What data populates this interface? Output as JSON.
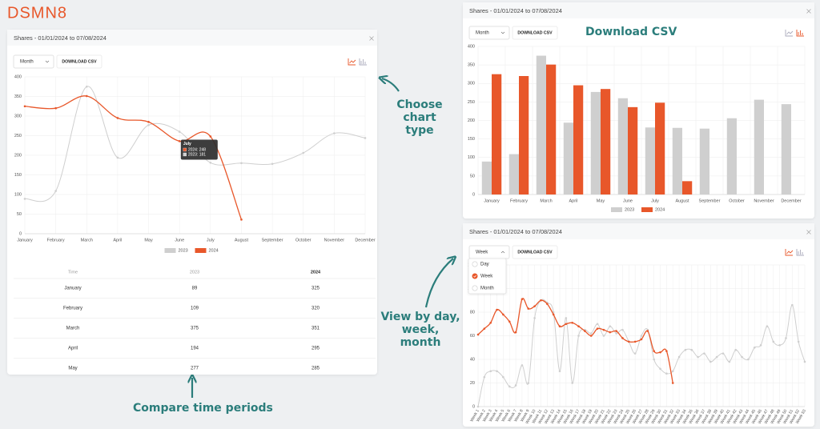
{
  "brand": "DSMN8",
  "annotations": [
    "Choose chart type",
    "Download CSV",
    "View by day, week, month",
    "Compare time periods"
  ],
  "chart_data": [
    {
      "type": "line",
      "title": "Shares - 01/01/2024 to 07/08/2024",
      "period": "Month",
      "button": "DOWNLOAD CSV",
      "categories": [
        "January",
        "February",
        "March",
        "April",
        "May",
        "June",
        "July",
        "August",
        "September",
        "October",
        "November",
        "December"
      ],
      "series": [
        {
          "name": "2023",
          "color": "#cfcfcf",
          "values": [
            89,
            109,
            375,
            194,
            277,
            260,
            181,
            180,
            178,
            206,
            256,
            244
          ]
        },
        {
          "name": "2024",
          "color": "#e8572a",
          "values": [
            325,
            320,
            351,
            295,
            285,
            236,
            248,
            36,
            null,
            null,
            null,
            null
          ]
        }
      ],
      "ylim": [
        0,
        400
      ],
      "yticks": [
        0,
        50,
        100,
        150,
        200,
        250,
        300,
        350,
        400
      ],
      "grid": true,
      "legend": "bottom",
      "tooltip": {
        "title": "July",
        "items": [
          "2024: 248",
          "2023: 181"
        ]
      },
      "table_header": "Time"
    },
    {
      "type": "bar",
      "title": "Shares - 01/01/2024 to 07/08/2024",
      "period": "Month",
      "button": "DOWNLOAD CSV",
      "categories": [
        "January",
        "February",
        "March",
        "April",
        "May",
        "June",
        "July",
        "August",
        "September",
        "October",
        "November",
        "December"
      ],
      "series": [
        {
          "name": "2023",
          "color": "#cfcfcf",
          "values": [
            89,
            109,
            375,
            194,
            277,
            260,
            181,
            180,
            178,
            206,
            256,
            244
          ]
        },
        {
          "name": "2024",
          "color": "#e8572a",
          "values": [
            325,
            320,
            351,
            295,
            285,
            236,
            248,
            36,
            null,
            null,
            null,
            null
          ]
        }
      ],
      "ylim": [
        0,
        400
      ],
      "yticks": [
        0,
        50,
        100,
        150,
        200,
        250,
        300,
        350,
        400
      ],
      "grid": true,
      "legend": "bottom"
    },
    {
      "type": "line",
      "title": "Shares - 01/01/2024 to 07/08/2024",
      "period": "Week",
      "period_options": [
        "Day",
        "Week",
        "Month"
      ],
      "button": "DOWNLOAD CSV",
      "categories": [
        "Week 1",
        "Week 2",
        "Week 3",
        "Week 4",
        "Week 5",
        "Week 6",
        "Week 7",
        "Week 8",
        "Week 9",
        "Week 10",
        "Week 11",
        "Week 12",
        "Week 13",
        "Week 14",
        "Week 15",
        "Week 16",
        "Week 17",
        "Week 18",
        "Week 19",
        "Week 20",
        "Week 21",
        "Week 22",
        "Week 23",
        "Week 24",
        "Week 25",
        "Week 26",
        "Week 27",
        "Week 28",
        "Week 29",
        "Week 30",
        "Week 31",
        "Week 32",
        "Week 33",
        "Week 34",
        "Week 35",
        "Week 36",
        "Week 37",
        "Week 38",
        "Week 39",
        "Week 40",
        "Week 41",
        "Week 42",
        "Week 43",
        "Week 44",
        "Week 45",
        "Week 46",
        "Week 47",
        "Week 48",
        "Week 49",
        "Week 50",
        "Week 51",
        "Week 52",
        "Week 53"
      ],
      "series": [
        {
          "name": "2023",
          "color": "#cfcfcf",
          "values": [
            0,
            25,
            30,
            30,
            25,
            17,
            18,
            35,
            20,
            75,
            90,
            88,
            80,
            30,
            75,
            20,
            60,
            65,
            62,
            70,
            60,
            68,
            62,
            65,
            55,
            45,
            60,
            65,
            40,
            32,
            28,
            30,
            42,
            48,
            48,
            42,
            45,
            38,
            42,
            45,
            38,
            48,
            42,
            40,
            50,
            52,
            68,
            55,
            52,
            58,
            86,
            55,
            38
          ]
        },
        {
          "name": "2024",
          "color": "#e8572a",
          "values": [
            61,
            66,
            71,
            82,
            78,
            72,
            63,
            91,
            83,
            85,
            90,
            87,
            78,
            68,
            70,
            71,
            68,
            64,
            60,
            66,
            65,
            63,
            64,
            58,
            55,
            55,
            57,
            64,
            47,
            46,
            47,
            20,
            null,
            null,
            null,
            null,
            null,
            null,
            null,
            null,
            null,
            null,
            null,
            null,
            null,
            null,
            null,
            null,
            null,
            null,
            null,
            null,
            null
          ]
        }
      ],
      "ylim": [
        0,
        120
      ],
      "yticks": [
        0,
        20,
        40,
        60,
        80,
        100,
        120
      ],
      "grid": true
    }
  ]
}
